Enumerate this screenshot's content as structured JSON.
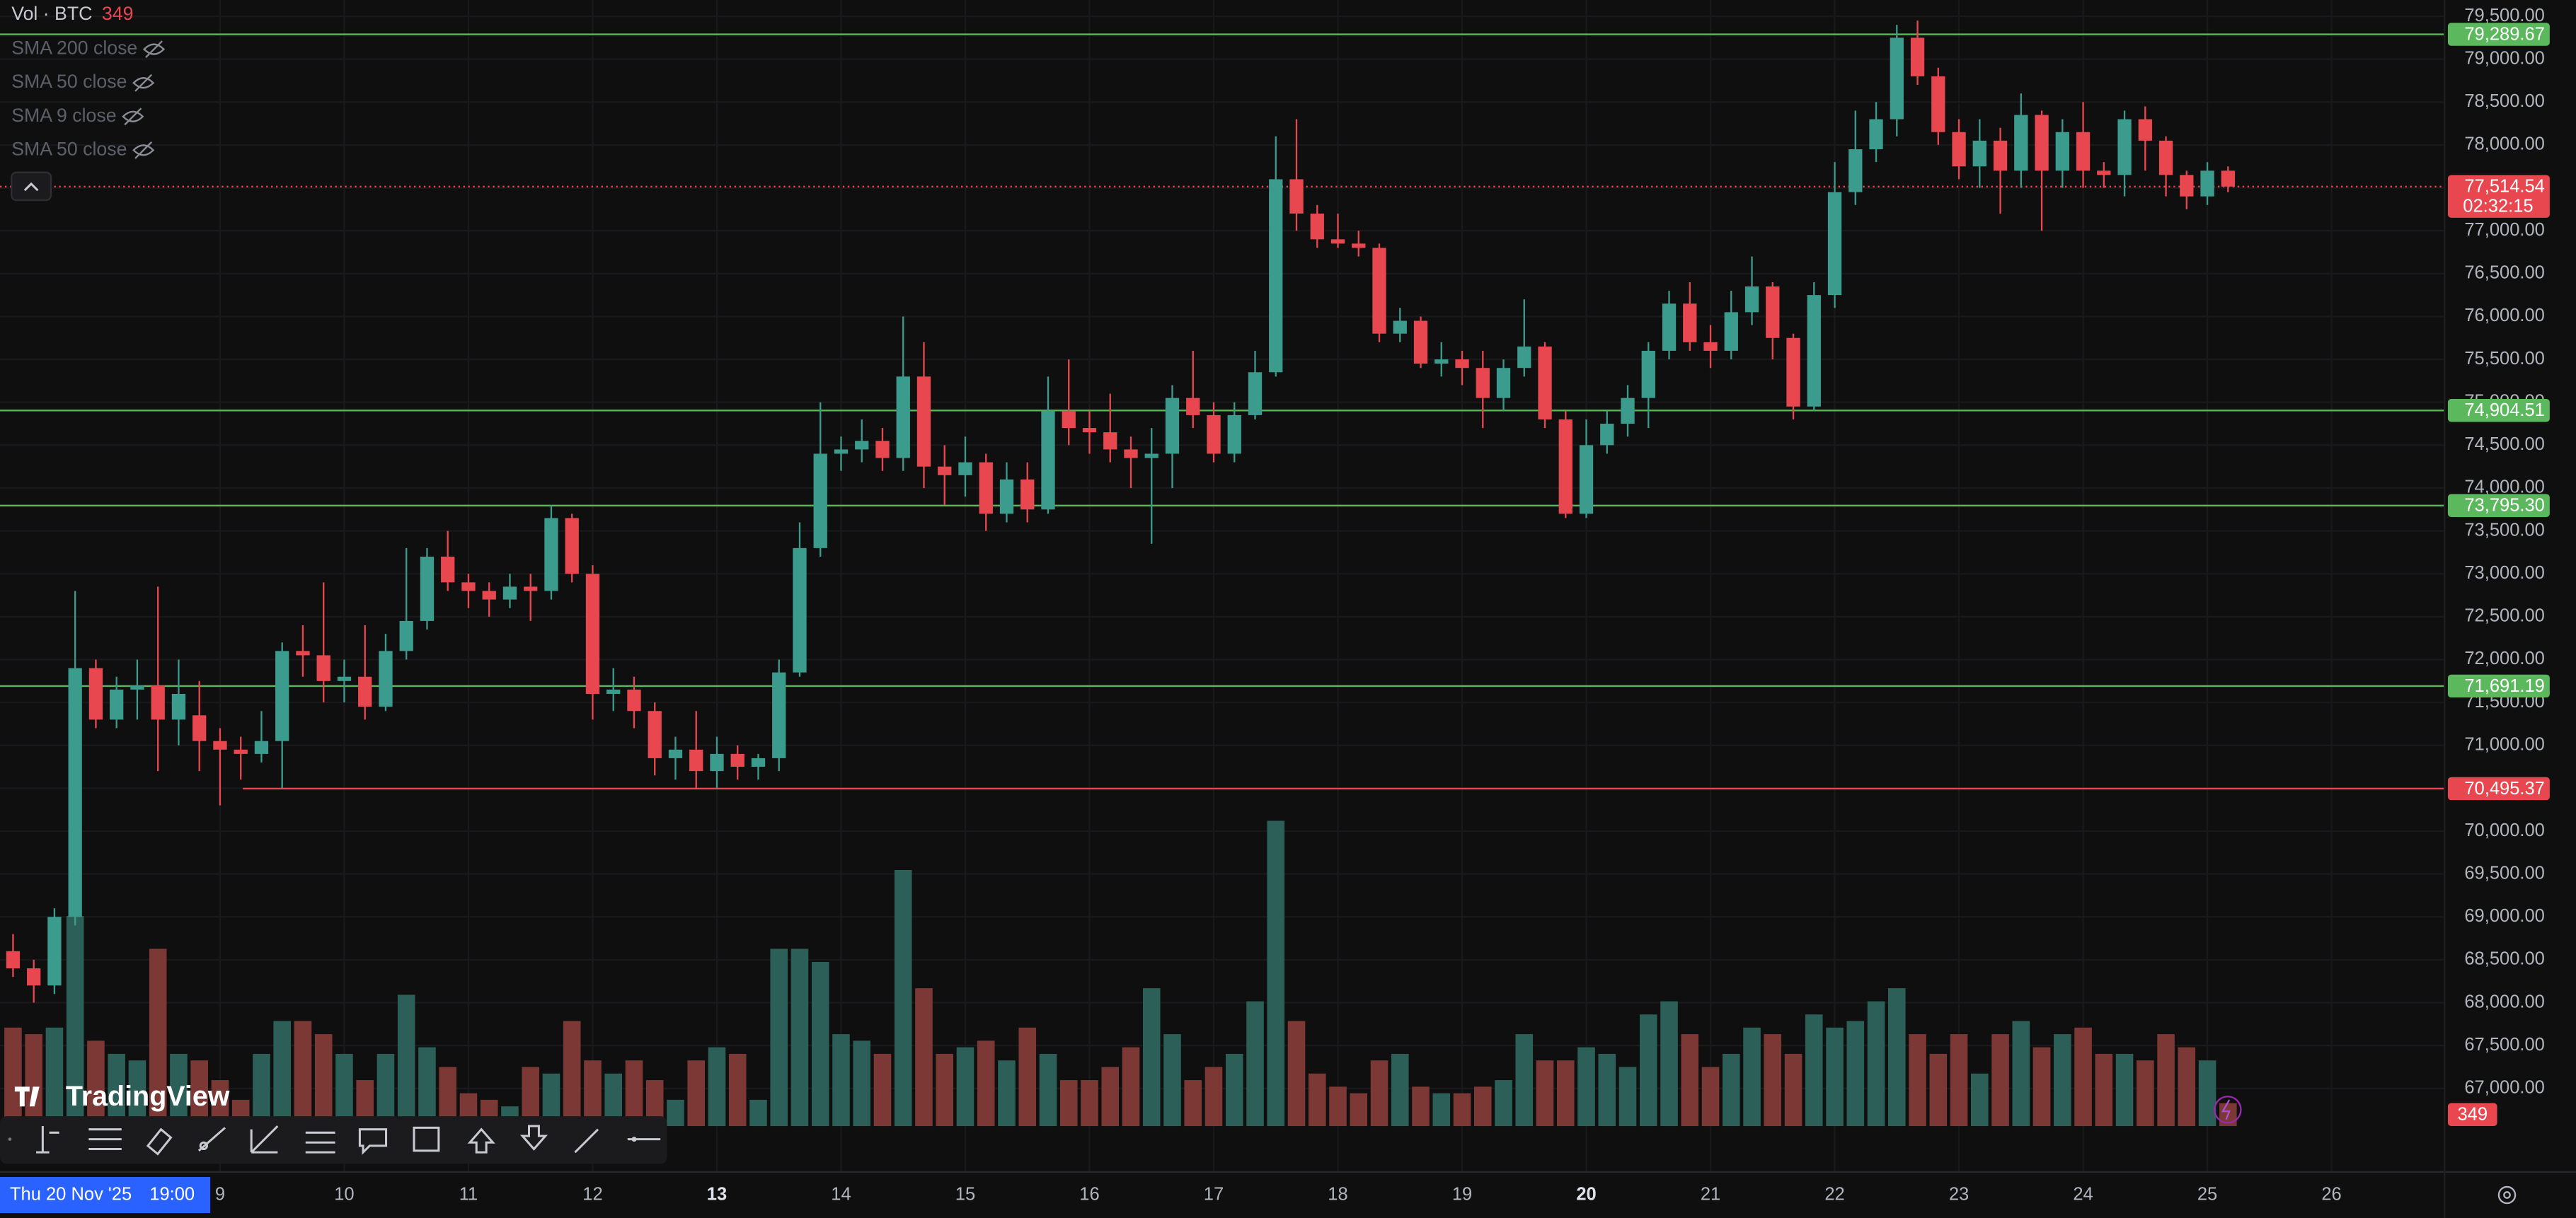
{
  "chart_data": {
    "type": "candlestick",
    "legend_title": "Vol · BTC",
    "indicators": [
      "SMA 200 close",
      "SMA 50 close",
      "SMA 9 close",
      "SMA 50 close"
    ],
    "logo": "TradingView",
    "cursor_label": {
      "date": "Thu 20 Nov '25",
      "time": "19:00"
    },
    "up_color": "#3b9b8c",
    "down_color": "#e8474f",
    "volume_up_color": "#2b5f58",
    "volume_down_color": "#7b3835",
    "grid": true,
    "ylim": [
      66025,
      79690
    ],
    "yticks": [
      {
        "value": 79500,
        "label": "79,500.00"
      },
      {
        "value": 79000,
        "label": "79,000.00"
      },
      {
        "value": 78500,
        "label": "78,500.00"
      },
      {
        "value": 78000,
        "label": "78,000.00"
      },
      {
        "value": 77500,
        "label": "77,500.00"
      },
      {
        "value": 77000,
        "label": "77,000.00"
      },
      {
        "value": 76500,
        "label": "76,500.00"
      },
      {
        "value": 76000,
        "label": "76,000.00"
      },
      {
        "value": 75500,
        "label": "75,500.00"
      },
      {
        "value": 75000,
        "label": "75,000.00"
      },
      {
        "value": 74500,
        "label": "74,500.00"
      },
      {
        "value": 74000,
        "label": "74,000.00"
      },
      {
        "value": 73500,
        "label": "73,500.00"
      },
      {
        "value": 73000,
        "label": "73,000.00"
      },
      {
        "value": 72500,
        "label": "72,500.00"
      },
      {
        "value": 72000,
        "label": "72,000.00"
      },
      {
        "value": 71500,
        "label": "71,500.00"
      },
      {
        "value": 71000,
        "label": "71,000.00"
      },
      {
        "value": 70500,
        "label": "70,500.00"
      },
      {
        "value": 70000,
        "label": "70,000.00"
      },
      {
        "value": 69500,
        "label": "69,500.00"
      },
      {
        "value": 69000,
        "label": "69,000.00"
      },
      {
        "value": 68500,
        "label": "68,500.00"
      },
      {
        "value": 68000,
        "label": "68,000.00"
      },
      {
        "value": 67500,
        "label": "67,500.00"
      },
      {
        "value": 67000,
        "label": "67,000.00"
      }
    ],
    "xlim": [
      -0.63,
      117.46
    ],
    "xticks": [
      {
        "value": 10,
        "label": "9"
      },
      {
        "value": 16,
        "label": "10"
      },
      {
        "value": 22,
        "label": "11"
      },
      {
        "value": 28,
        "label": "12"
      },
      {
        "value": 34,
        "label": "13",
        "bold": true
      },
      {
        "value": 40,
        "label": "14"
      },
      {
        "value": 46,
        "label": "15"
      },
      {
        "value": 52,
        "label": "16"
      },
      {
        "value": 58,
        "label": "17"
      },
      {
        "value": 64,
        "label": "18"
      },
      {
        "value": 70,
        "label": "19"
      },
      {
        "value": 76,
        "label": "20",
        "bold": true
      },
      {
        "value": 82,
        "label": "21"
      },
      {
        "value": 88,
        "label": "22"
      },
      {
        "value": 94,
        "label": "23"
      },
      {
        "value": 100,
        "label": "24"
      },
      {
        "value": 106,
        "label": "25"
      },
      {
        "value": 112,
        "label": "26"
      }
    ],
    "candles": {
      "open": [
        68600,
        68400,
        68200,
        69000,
        71900,
        71300,
        71650,
        71700,
        71300,
        71350,
        71050,
        70950,
        70900,
        71050,
        72100,
        72050,
        71750,
        71800,
        71450,
        72100,
        72450,
        73200,
        72900,
        72800,
        72700,
        72850,
        72800,
        73650,
        73000,
        71600,
        71650,
        71400,
        70850,
        70950,
        70700,
        70900,
        70750,
        70850,
        71850,
        73300,
        74400,
        74450,
        74550,
        74350,
        75300,
        74250,
        74150,
        74300,
        73700,
        74100,
        73750,
        74900,
        74700,
        74650,
        74450,
        74350,
        74400,
        75050,
        74850,
        74400,
        74850,
        75350,
        77600,
        77200,
        76900,
        76850,
        76800,
        75800,
        75950,
        75450,
        75500,
        75400,
        75050,
        75400,
        75650,
        74800,
        73700,
        74500,
        74750,
        75050,
        75600,
        76150,
        75700,
        75600,
        76050,
        76350,
        75750,
        74950,
        76250,
        77450,
        77950,
        78300,
        79250,
        78800,
        78150,
        77750,
        78050,
        77700,
        78350,
        77700,
        78150,
        77700,
        77650,
        78300,
        78050,
        77650,
        77400,
        77700
      ],
      "high": [
        68800,
        68500,
        69100,
        72800,
        72000,
        71800,
        72000,
        72850,
        72000,
        71750,
        71200,
        71100,
        71400,
        72200,
        72400,
        72900,
        72000,
        72400,
        72300,
        73300,
        73300,
        73500,
        73000,
        72900,
        73000,
        73000,
        73800,
        73700,
        73100,
        71900,
        71800,
        71500,
        71100,
        71400,
        71100,
        71000,
        70900,
        72000,
        73600,
        75000,
        74600,
        74800,
        74700,
        76000,
        75700,
        74500,
        74600,
        74400,
        74300,
        74300,
        75300,
        75500,
        74900,
        75100,
        74600,
        74700,
        75200,
        75600,
        75000,
        75000,
        75600,
        78100,
        78300,
        77300,
        77200,
        77000,
        76850,
        76100,
        76000,
        75700,
        75600,
        75600,
        75500,
        76200,
        75700,
        74900,
        74800,
        74900,
        75200,
        75700,
        76300,
        76400,
        75900,
        76300,
        76700,
        76400,
        75800,
        76400,
        77800,
        78400,
        78500,
        79400,
        79450,
        78900,
        78300,
        78300,
        78200,
        78600,
        78400,
        78300,
        78500,
        77800,
        78400,
        78450,
        78100,
        77700,
        77800,
        77750
      ],
      "low": [
        68300,
        68000,
        68100,
        68900,
        71200,
        71200,
        71300,
        70700,
        71000,
        70700,
        70300,
        70600,
        70800,
        70500,
        71800,
        71500,
        71500,
        71300,
        71400,
        72000,
        72350,
        72800,
        72600,
        72500,
        72600,
        72450,
        72700,
        72900,
        71300,
        71400,
        71200,
        70650,
        70600,
        70500,
        70500,
        70600,
        70600,
        70700,
        71800,
        73200,
        74200,
        74300,
        74200,
        74200,
        74000,
        73800,
        73900,
        73500,
        73600,
        73600,
        73700,
        74500,
        74400,
        74300,
        74000,
        73350,
        74000,
        74700,
        74300,
        74300,
        74800,
        75300,
        77000,
        76800,
        76800,
        76700,
        75700,
        75700,
        75400,
        75300,
        75200,
        74700,
        74900,
        75300,
        74700,
        73650,
        73650,
        74400,
        74600,
        74700,
        75500,
        75600,
        75400,
        75500,
        75900,
        75500,
        74800,
        74900,
        76100,
        77300,
        77800,
        78100,
        78700,
        78000,
        77600,
        77500,
        77200,
        77500,
        77000,
        77500,
        77500,
        77500,
        77400,
        77700,
        77400,
        77250,
        77300,
        77450
      ],
      "close": [
        68400,
        68200,
        69000,
        71900,
        71300,
        71650,
        71700,
        71300,
        71600,
        71050,
        70950,
        70900,
        71050,
        72100,
        72050,
        71750,
        71800,
        71450,
        72100,
        72450,
        73200,
        72900,
        72800,
        72700,
        72850,
        72800,
        73650,
        73000,
        71600,
        71650,
        71400,
        70850,
        70950,
        70700,
        70900,
        70750,
        70850,
        71850,
        73300,
        74400,
        74450,
        74550,
        74350,
        75300,
        74250,
        74150,
        74300,
        73700,
        74100,
        73750,
        74900,
        74700,
        74650,
        74450,
        74350,
        74400,
        75050,
        74850,
        74400,
        74850,
        75350,
        77600,
        77200,
        76900,
        76850,
        76800,
        75800,
        75950,
        75450,
        75500,
        75400,
        75050,
        75400,
        75650,
        74800,
        73700,
        74500,
        74750,
        75050,
        75600,
        76150,
        75700,
        75600,
        76050,
        76350,
        75750,
        74950,
        76250,
        77450,
        77950,
        78300,
        79250,
        78800,
        78150,
        77750,
        78050,
        77700,
        78350,
        77700,
        78150,
        77700,
        77650,
        78300,
        78050,
        77650,
        77400,
        77700,
        77514.54
      ]
    },
    "volume": {
      "ylim": [
        0,
        5000
      ],
      "values": [
        1500,
        1400,
        1500,
        3200,
        1300,
        1100,
        1000,
        2700,
        1100,
        1000,
        700,
        400,
        1100,
        1600,
        1600,
        1400,
        1100,
        700,
        1100,
        2000,
        1200,
        900,
        500,
        400,
        300,
        900,
        800,
        1600,
        1000,
        800,
        1000,
        700,
        400,
        1000,
        1200,
        1100,
        400,
        2700,
        2700,
        2500,
        1400,
        1300,
        1100,
        3900,
        2100,
        1100,
        1200,
        1300,
        1000,
        1500,
        1100,
        700,
        700,
        900,
        1200,
        2100,
        1400,
        700,
        900,
        1100,
        1900,
        4650,
        1600,
        800,
        600,
        500,
        1000,
        1100,
        600,
        500,
        500,
        600,
        700,
        1400,
        1000,
        1000,
        1200,
        1100,
        900,
        1700,
        1900,
        1400,
        900,
        1100,
        1500,
        1400,
        1100,
        1700,
        1500,
        1600,
        1900,
        2100,
        1400,
        1100,
        1400,
        800,
        1400,
        1600,
        1200,
        1400,
        1500,
        1100,
        1100,
        1000,
        1400,
        1200,
        1000,
        349
      ]
    },
    "levels": [
      {
        "value": 79289.67,
        "label": "79,289.67",
        "color": "#5cb85c",
        "x_start": -0.63
      },
      {
        "value": 74904.51,
        "label": "74,904.51",
        "color": "#5cb85c",
        "x_start": -0.63
      },
      {
        "value": 73795.3,
        "label": "73,795.30",
        "color": "#5cb85c",
        "x_start": -0.63
      },
      {
        "value": 71691.19,
        "label": "71,691.19",
        "color": "#5cb85c",
        "x_start": -0.63
      },
      {
        "value": 70495.37,
        "label": "70,495.37",
        "color": "#e8474f",
        "x_start": 11.1
      }
    ],
    "last_price": {
      "value": 77514.54,
      "label": "77,514.54",
      "countdown": "02:32:15",
      "color": "#e8474f"
    }
  }
}
